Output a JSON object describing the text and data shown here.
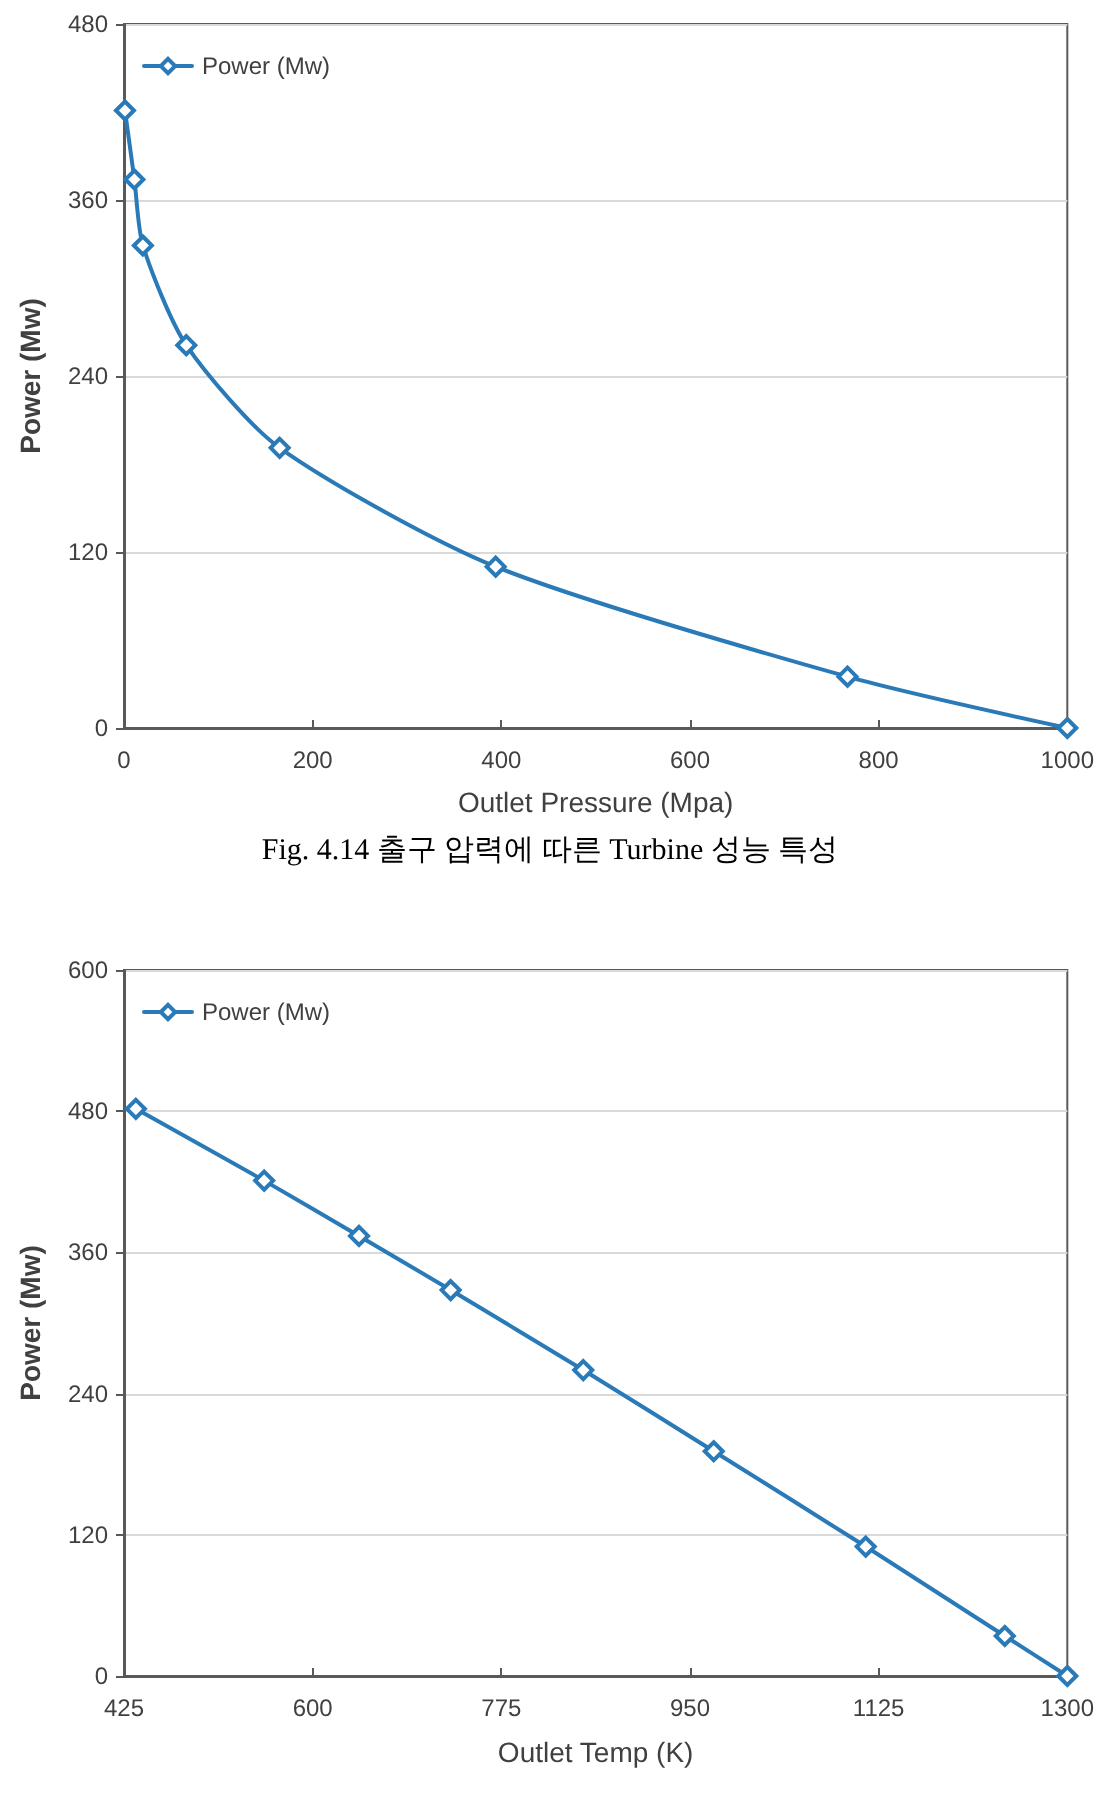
{
  "chart_data": [
    {
      "type": "line",
      "xlabel": "Outlet Pressure (Mpa)",
      "ylabel": "Power (Mw)",
      "annotations": [
        "Fig. 4.14 출구 압력에 따른 Turbine 성능 특성"
      ],
      "x": [
        1,
        11,
        20,
        66,
        165,
        394,
        767,
        1000
      ],
      "series": [
        {
          "name": "Power (Mw)",
          "color": "#2a7ab8",
          "values": [
            421,
            374,
            329,
            261,
            191,
            110,
            35,
            0
          ]
        }
      ],
      "xlim": [
        0,
        1000
      ],
      "xticks": [
        0,
        200,
        400,
        600,
        800,
        1000
      ],
      "ylim": [
        0,
        480
      ],
      "yticks": [
        0,
        120,
        240,
        360,
        480
      ],
      "grid": "y",
      "legend": "top left",
      "marker": "diamond",
      "line_style": "solid"
    },
    {
      "type": "line",
      "xlabel": "Outlet Temp (K)",
      "ylabel": "Power (Mw)",
      "x": [
        436,
        555,
        643,
        728,
        851,
        972,
        1113,
        1242,
        1300
      ],
      "series": [
        {
          "name": "Power (Mw)",
          "color": "#2a7ab8",
          "values": [
            482,
            421,
            374,
            328,
            260,
            191,
            110,
            34,
            0
          ]
        }
      ],
      "xlim": [
        425,
        1300
      ],
      "xticks": [
        425,
        600,
        775,
        950,
        1125,
        1300
      ],
      "ylim": [
        0,
        600
      ],
      "yticks": [
        0,
        120,
        240,
        360,
        480,
        600
      ],
      "grid": "y",
      "legend": "top left",
      "marker": "diamond",
      "line_style": "solid"
    }
  ]
}
